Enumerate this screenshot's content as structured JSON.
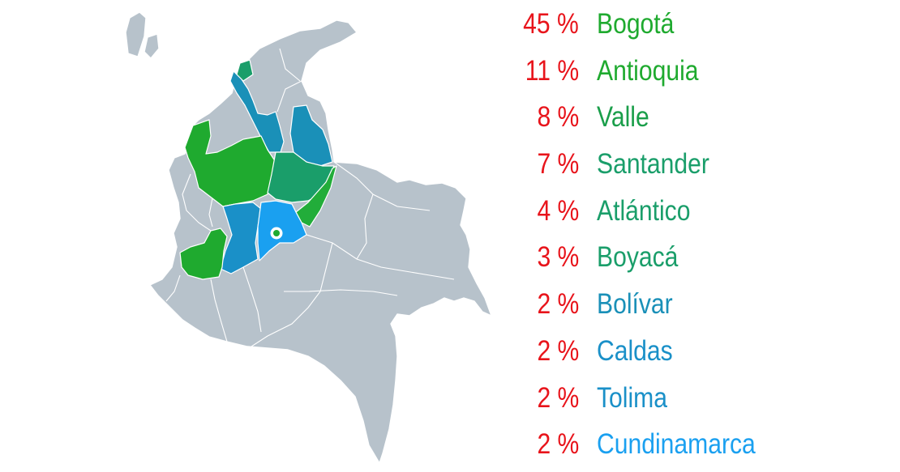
{
  "legend": {
    "rows": [
      {
        "pct": "45 %",
        "name": "Bogotá",
        "color": "#1faa2f"
      },
      {
        "pct": "11 %",
        "name": "Antioquia",
        "color": "#1faa2f"
      },
      {
        "pct": "8 %",
        "name": "Valle",
        "color": "#1a9e4a"
      },
      {
        "pct": "7 %",
        "name": "Santander",
        "color": "#1a9e6a"
      },
      {
        "pct": "4 %",
        "name": "Atlántico",
        "color": "#1a9e6a"
      },
      {
        "pct": "3 %",
        "name": "Boyacá",
        "color": "#1a9e6a"
      },
      {
        "pct": "2 %",
        "name": "Bolívar",
        "color": "#1a90b8"
      },
      {
        "pct": "2 %",
        "name": "Caldas",
        "color": "#1a90c8"
      },
      {
        "pct": "2 %",
        "name": "Tolima",
        "color": "#1a90c8"
      },
      {
        "pct": "2 %",
        "name": "Cundinamarca",
        "color": "#1aa0f0"
      }
    ]
  },
  "map": {
    "base_color": "#b7c2cb",
    "marker_icon": "location-dot-icon"
  }
}
